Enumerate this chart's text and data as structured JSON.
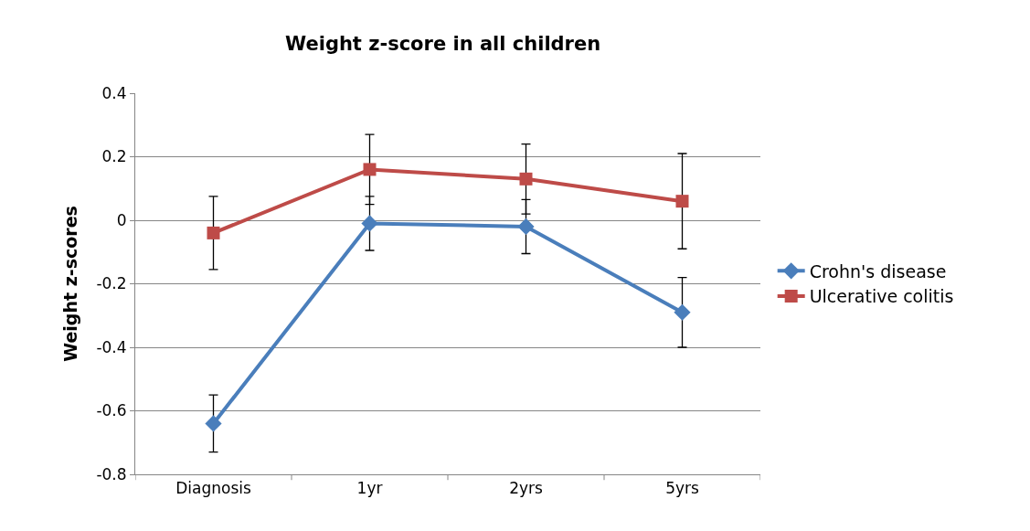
{
  "chart_data": {
    "type": "line",
    "title": "Weight z-score in all children",
    "ylabel": "Weight z-scores",
    "categories": [
      "Diagnosis",
      "1yr",
      "2yrs",
      "5yrs"
    ],
    "series": [
      {
        "name": "Crohn's disease",
        "color": "#4a7ebb",
        "marker": "diamond",
        "values": [
          -0.64,
          -0.01,
          -0.02,
          -0.29
        ],
        "errors": [
          0.09,
          0.085,
          0.085,
          0.11
        ]
      },
      {
        "name": "Ulcerative colitis",
        "color": "#be4b48",
        "marker": "square",
        "values": [
          -0.04,
          0.16,
          0.13,
          0.06
        ],
        "errors": [
          0.115,
          0.11,
          0.11,
          0.15
        ]
      }
    ],
    "ylim": [
      -0.8,
      0.4
    ],
    "yticks": [
      -0.8,
      -0.6,
      -0.4,
      -0.2,
      0,
      0.2,
      0.4
    ],
    "grid": "y",
    "legend": "right"
  }
}
